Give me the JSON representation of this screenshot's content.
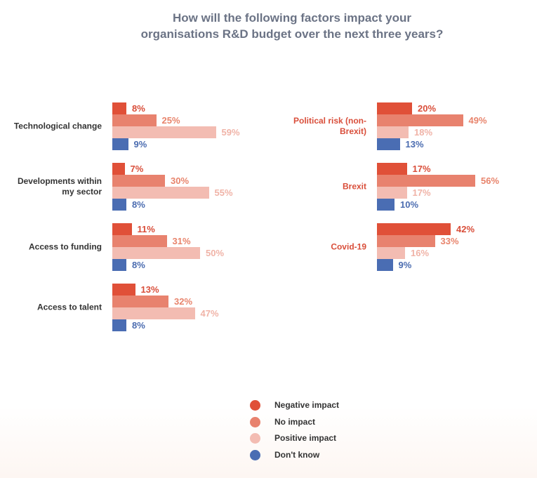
{
  "chart_data": {
    "type": "bar",
    "orientation": "horizontal",
    "title": "How will the following factors impact your organisations R&D budget over the next three years?",
    "categories": [
      "Technological change",
      "Developments within my sector",
      "Access to funding",
      "Access to talent",
      "Political risk (non-Brexit)",
      "Brexit",
      "Covid-19"
    ],
    "series": [
      {
        "name": "Negative impact",
        "color": "#e05038",
        "values": [
          8,
          7,
          11,
          13,
          20,
          17,
          42
        ],
        "value_labels": [
          "8%",
          "7%",
          "11%",
          "13%",
          "20%",
          "17%",
          "42%"
        ]
      },
      {
        "name": "No impact",
        "color": "#e8826e",
        "values": [
          25,
          30,
          31,
          32,
          49,
          56,
          33
        ],
        "value_labels": [
          "25%",
          "30%",
          "31%",
          "32%",
          "49%",
          "56%",
          "33%"
        ]
      },
      {
        "name": "Positive impact",
        "color": "#f3bcb2",
        "values": [
          59,
          55,
          50,
          47,
          18,
          17,
          16
        ],
        "value_labels": [
          "59%",
          "55%",
          "50%",
          "47%",
          "18%",
          "17%",
          "16%"
        ]
      },
      {
        "name": "Don't know",
        "color": "#4a6db3",
        "values": [
          9,
          8,
          8,
          8,
          13,
          10,
          9
        ],
        "value_labels": [
          "9%",
          "8%",
          "8%",
          "8%",
          "13%",
          "10%",
          "9%"
        ]
      }
    ],
    "legend": "bottom"
  }
}
